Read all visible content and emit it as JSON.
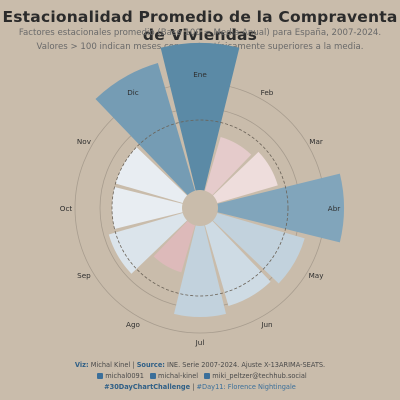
{
  "header": {
    "title": "Estacionalidad Promedio de la Compraventa de Viviendas",
    "subtitle_1": "Factores estacionales promedio (Base 100 = Media Anual) para España, 2007-2024.",
    "subtitle_2": "Valores > 100 indican meses con ventas típicamente superiores a la media."
  },
  "caption": {
    "viz_label": "Viz:",
    "viz_author": "Michal Kinel",
    "source_label": "Source:",
    "source_text": "INE. Serie 2007-2024. Ajuste X-13ARIMA-SEATS.",
    "github": "michal0091",
    "linkedin": "michal-kinel",
    "mastodon": "miki_peltzer@techhub.social",
    "hashtag": "#30DayChartChallenge",
    "day_text": "#Day11: Florence Nightingale",
    "separator": "|"
  },
  "chart_data": {
    "type": "polar-bar",
    "title": "Estacionalidad Promedio de la Compraventa de Viviendas",
    "categories": [
      "Ene",
      "Feb",
      "Mar",
      "Abr",
      "May",
      "Jun",
      "Jul",
      "Ago",
      "Sep",
      "Oct",
      "Nov",
      "Dic"
    ],
    "values": [
      111,
      98,
      99,
      108,
      103,
      102,
      103,
      97,
      101,
      100,
      100,
      109
    ],
    "reference_value": 100,
    "colors": {
      "background": "#c9bcab",
      "above_strong": "#5b8aa6",
      "above_light": "#b8cbd8",
      "below_light": "#e9d2d2",
      "below_strong": "#9a2e33",
      "grid": "#a79c8e"
    }
  }
}
